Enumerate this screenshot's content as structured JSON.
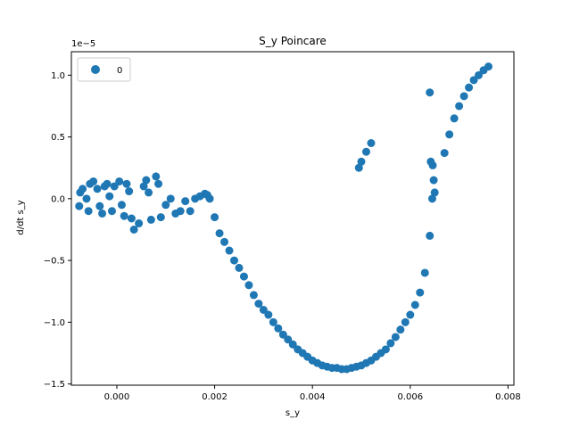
{
  "chart_data": {
    "type": "scatter",
    "title": "S_y Poincare",
    "xlabel": "s_y",
    "ylabel": "d/dt s_y",
    "y_offset_label": "1e−5",
    "xlim": [
      -0.00093,
      0.00812
    ],
    "ylim": [
      -1.51,
      1.19
    ],
    "x_ticks": [
      0.0,
      0.002,
      0.004,
      0.006,
      0.008
    ],
    "x_tick_labels": [
      "0.000",
      "0.002",
      "0.004",
      "0.006",
      "0.008"
    ],
    "y_ticks": [
      -1.5,
      -1.0,
      -0.5,
      0.0,
      0.5,
      1.0
    ],
    "y_tick_labels": [
      "−1.5",
      "−1.0",
      "−0.5",
      "0.0",
      "0.5",
      "1.0"
    ],
    "grid": false,
    "legend": {
      "placement": "top-left",
      "entries": [
        "0"
      ]
    },
    "color": "#1f77b4",
    "series": [
      {
        "name": "0",
        "points": [
          [
            -0.00077,
            -0.06
          ],
          [
            -0.00075,
            0.05
          ],
          [
            -0.0007,
            0.08
          ],
          [
            -0.00062,
            0.0
          ],
          [
            -0.00058,
            -0.1
          ],
          [
            -0.00055,
            0.12
          ],
          [
            -0.00048,
            0.14
          ],
          [
            -0.0004,
            0.08
          ],
          [
            -0.00035,
            -0.06
          ],
          [
            -0.0003,
            -0.12
          ],
          [
            -0.00025,
            0.1
          ],
          [
            -0.0002,
            0.12
          ],
          [
            -0.00015,
            0.02
          ],
          [
            -0.0001,
            -0.1
          ],
          [
            -5e-05,
            0.1
          ],
          [
            5e-05,
            0.14
          ],
          [
            0.0001,
            -0.05
          ],
          [
            0.00015,
            -0.14
          ],
          [
            0.0002,
            0.12
          ],
          [
            0.00025,
            0.06
          ],
          [
            0.0003,
            -0.16
          ],
          [
            0.00035,
            -0.25
          ],
          [
            0.00045,
            -0.2
          ],
          [
            0.00055,
            0.1
          ],
          [
            0.0006,
            0.15
          ],
          [
            0.00065,
            0.05
          ],
          [
            0.0007,
            -0.17
          ],
          [
            0.0008,
            0.18
          ],
          [
            0.00085,
            0.12
          ],
          [
            0.0009,
            -0.15
          ],
          [
            0.001,
            -0.05
          ],
          [
            0.0011,
            0.0
          ],
          [
            0.0012,
            -0.12
          ],
          [
            0.0013,
            -0.1
          ],
          [
            0.0014,
            -0.02
          ],
          [
            0.0015,
            -0.1
          ],
          [
            0.0016,
            0.0
          ],
          [
            0.0017,
            0.02
          ],
          [
            0.0018,
            0.04
          ],
          [
            0.00185,
            0.03
          ],
          [
            0.0019,
            0.0
          ],
          [
            0.002,
            -0.15
          ],
          [
            0.0021,
            -0.28
          ],
          [
            0.0022,
            -0.35
          ],
          [
            0.0023,
            -0.42
          ],
          [
            0.0024,
            -0.5
          ],
          [
            0.0025,
            -0.56
          ],
          [
            0.0026,
            -0.63
          ],
          [
            0.0027,
            -0.7
          ],
          [
            0.0028,
            -0.78
          ],
          [
            0.0029,
            -0.85
          ],
          [
            0.003,
            -0.9
          ],
          [
            0.0031,
            -0.94
          ],
          [
            0.0032,
            -1.0
          ],
          [
            0.0033,
            -1.05
          ],
          [
            0.0034,
            -1.1
          ],
          [
            0.0035,
            -1.14
          ],
          [
            0.0036,
            -1.18
          ],
          [
            0.0037,
            -1.22
          ],
          [
            0.0038,
            -1.25
          ],
          [
            0.0039,
            -1.28
          ],
          [
            0.004,
            -1.31
          ],
          [
            0.0041,
            -1.33
          ],
          [
            0.0042,
            -1.35
          ],
          [
            0.0043,
            -1.36
          ],
          [
            0.0044,
            -1.37
          ],
          [
            0.0045,
            -1.37
          ],
          [
            0.0046,
            -1.38
          ],
          [
            0.0047,
            -1.38
          ],
          [
            0.0048,
            -1.37
          ],
          [
            0.0049,
            -1.36
          ],
          [
            0.005,
            -1.35
          ],
          [
            0.0051,
            -1.33
          ],
          [
            0.0052,
            -1.31
          ],
          [
            0.0053,
            -1.28
          ],
          [
            0.0054,
            -1.25
          ],
          [
            0.0055,
            -1.22
          ],
          [
            0.0056,
            -1.17
          ],
          [
            0.0057,
            -1.12
          ],
          [
            0.0058,
            -1.06
          ],
          [
            0.0059,
            -1.0
          ],
          [
            0.006,
            -0.94
          ],
          [
            0.0061,
            -0.86
          ],
          [
            0.0062,
            -0.76
          ],
          [
            0.0063,
            -0.6
          ],
          [
            0.0064,
            -0.3
          ],
          [
            0.00645,
            0.0
          ],
          [
            0.00648,
            0.15
          ],
          [
            0.00646,
            0.27
          ],
          [
            0.00642,
            0.3
          ],
          [
            0.0065,
            0.05
          ],
          [
            0.00495,
            0.25
          ],
          [
            0.005,
            0.3
          ],
          [
            0.0051,
            0.38
          ],
          [
            0.0052,
            0.45
          ],
          [
            0.0064,
            0.86
          ],
          [
            0.0067,
            0.37
          ],
          [
            0.0068,
            0.52
          ],
          [
            0.0069,
            0.65
          ],
          [
            0.007,
            0.75
          ],
          [
            0.0071,
            0.83
          ],
          [
            0.0072,
            0.9
          ],
          [
            0.0073,
            0.96
          ],
          [
            0.0074,
            1.0
          ],
          [
            0.0075,
            1.04
          ],
          [
            0.0076,
            1.07
          ]
        ]
      }
    ]
  }
}
